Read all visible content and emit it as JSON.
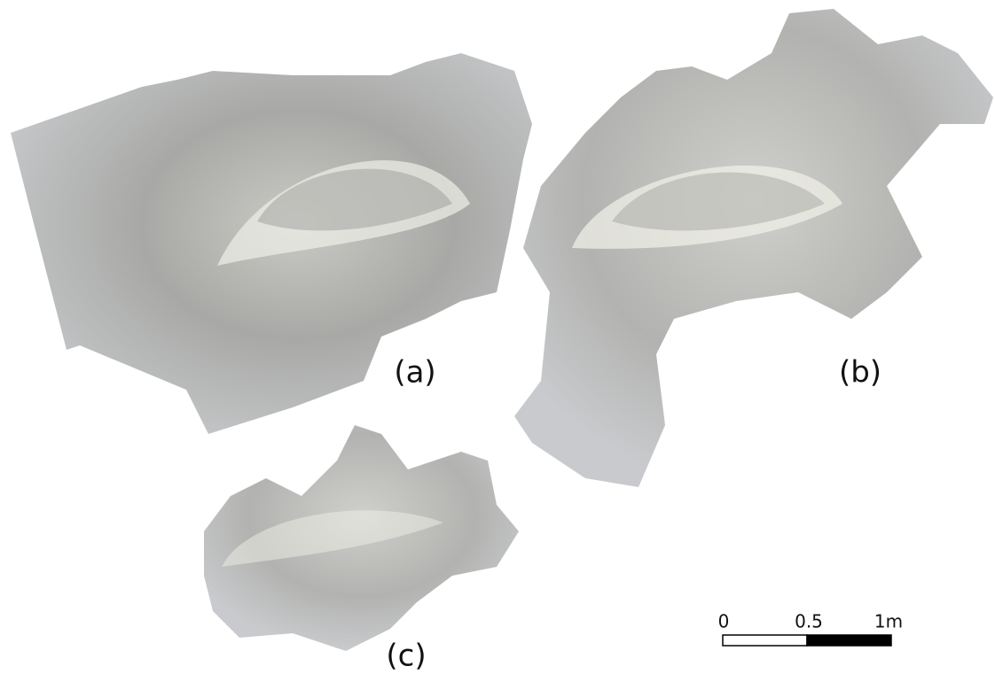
{
  "panels": [
    {
      "label": "(a)"
    },
    {
      "label": "(b)"
    },
    {
      "label": "(c)"
    }
  ],
  "scale_bar": {
    "labels": [
      "0",
      "0.5",
      "1m"
    ]
  }
}
